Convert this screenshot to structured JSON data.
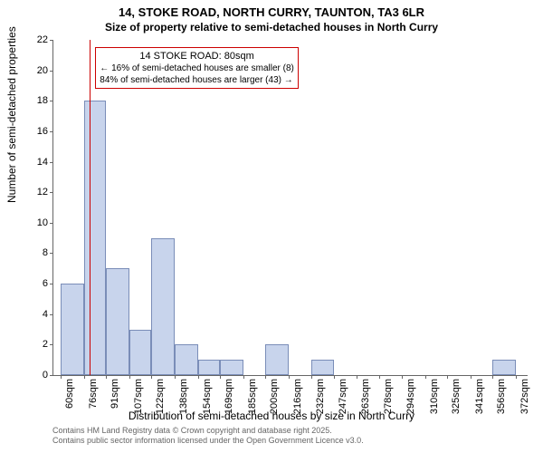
{
  "title_main": "14, STOKE ROAD, NORTH CURRY, TAUNTON, TA3 6LR",
  "title_sub": "Size of property relative to semi-detached houses in North Curry",
  "ylabel": "Number of semi-detached properties",
  "xlabel": "Distribution of semi-detached houses by size in North Curry",
  "footer_line1": "Contains HM Land Registry data © Crown copyright and database right 2025.",
  "footer_line2": "Contains public sector information licensed under the Open Government Licence v3.0.",
  "annotation": {
    "title": "14 STOKE ROAD: 80sqm",
    "line1": "← 16% of semi-detached houses are smaller (8)",
    "line2": "84% of semi-detached houses are larger (43) →"
  },
  "chart": {
    "type": "histogram",
    "bar_fill": "#c8d4ec",
    "bar_stroke": "#7a8db8",
    "ref_line_color": "#cc0000",
    "annot_border": "#cc0000",
    "background": "#ffffff",
    "ylim": [
      0,
      22
    ],
    "yticks": [
      0,
      2,
      4,
      6,
      8,
      10,
      12,
      14,
      16,
      18,
      20,
      22
    ],
    "x_data_min": 55,
    "x_data_max": 380,
    "xticks": [
      60,
      76,
      91,
      107,
      122,
      138,
      154,
      169,
      185,
      200,
      216,
      232,
      247,
      263,
      278,
      294,
      310,
      325,
      341,
      356,
      372
    ],
    "xtick_suffix": "sqm",
    "ref_line_x": 80,
    "bars": [
      {
        "x0": 60,
        "x1": 76,
        "y": 6
      },
      {
        "x0": 76,
        "x1": 91,
        "y": 18
      },
      {
        "x0": 91,
        "x1": 107,
        "y": 7
      },
      {
        "x0": 107,
        "x1": 122,
        "y": 3
      },
      {
        "x0": 122,
        "x1": 138,
        "y": 9
      },
      {
        "x0": 138,
        "x1": 154,
        "y": 2
      },
      {
        "x0": 154,
        "x1": 169,
        "y": 1
      },
      {
        "x0": 169,
        "x1": 185,
        "y": 1
      },
      {
        "x0": 200,
        "x1": 216,
        "y": 2
      },
      {
        "x0": 232,
        "x1": 247,
        "y": 1
      },
      {
        "x0": 356,
        "x1": 372,
        "y": 1
      }
    ]
  }
}
